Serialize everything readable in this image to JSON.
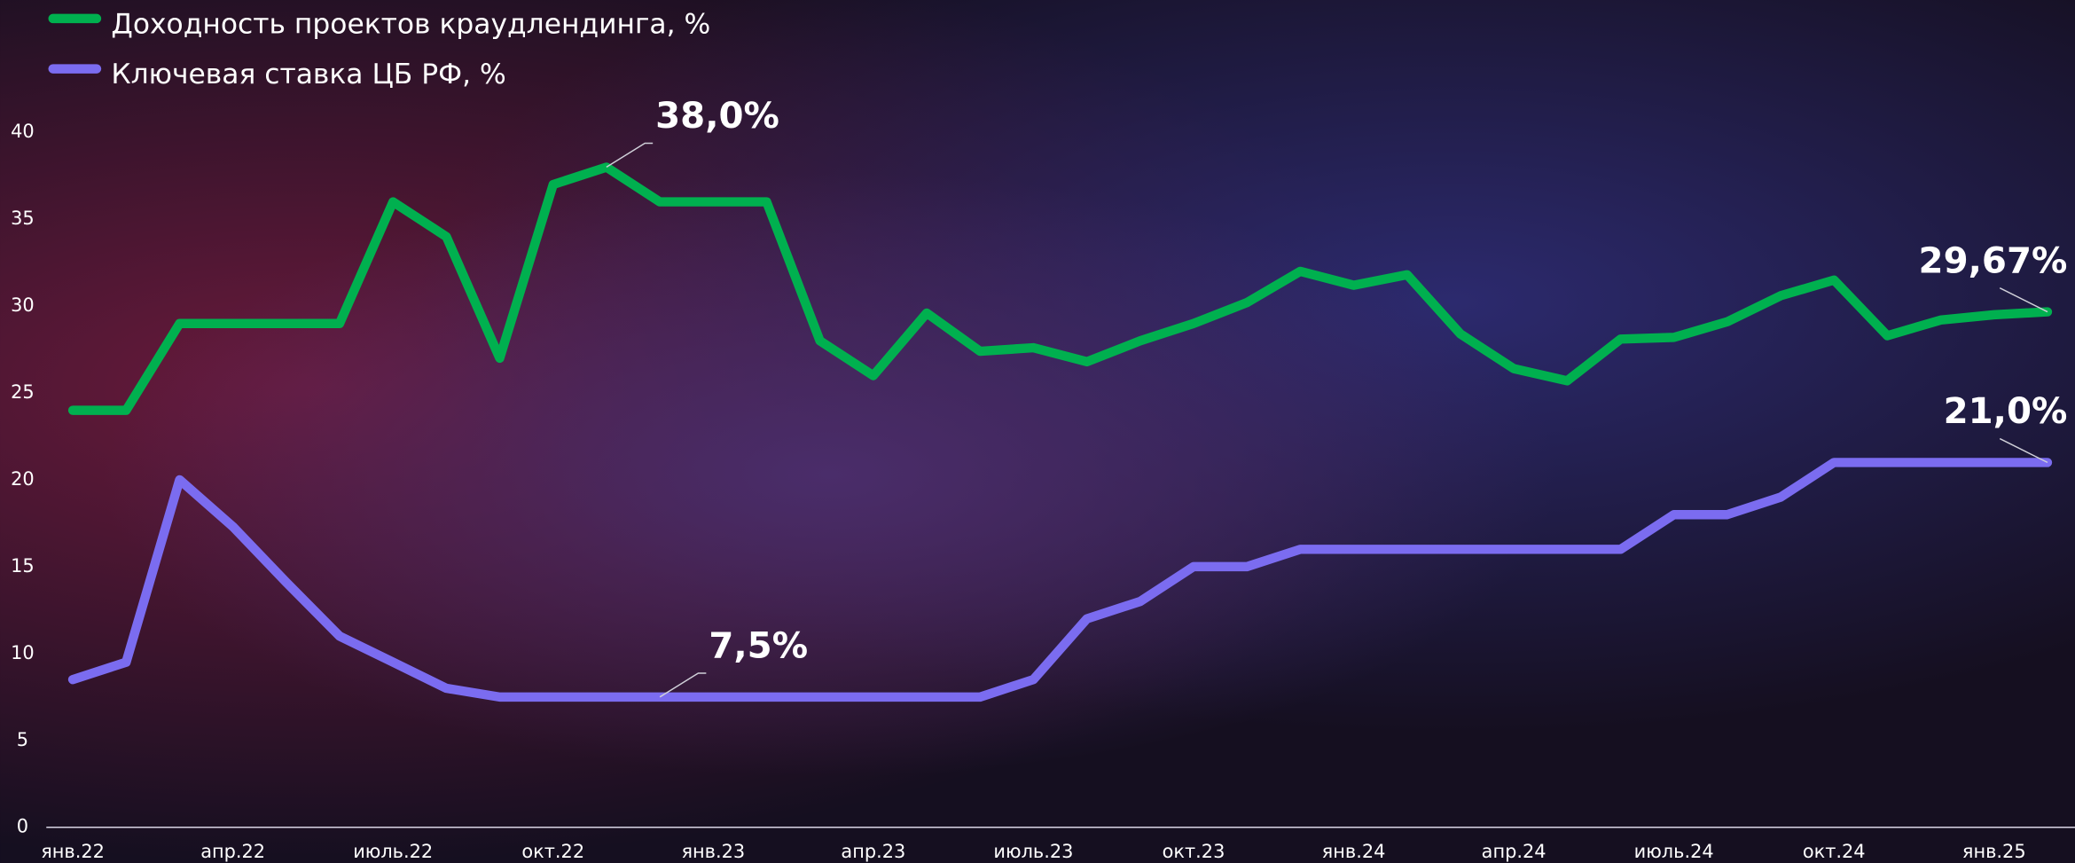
{
  "chart_data": {
    "type": "line",
    "categories": [
      "янв.22",
      null,
      null,
      "апр.22",
      null,
      null,
      "июль.22",
      null,
      null,
      "окт.22",
      null,
      null,
      "янв.23",
      null,
      null,
      "апр.23",
      null,
      null,
      "июль.23",
      null,
      null,
      "окт.23",
      null,
      null,
      "янв.24",
      null,
      null,
      "апр.24",
      null,
      null,
      "июль.24",
      null,
      null,
      "окт.24",
      null,
      null,
      "янв.25",
      null
    ],
    "series": [
      {
        "name": "Доходность проектов  краудлендинга, %",
        "color": "#00b04f",
        "values": [
          24,
          24,
          29,
          29,
          29,
          29,
          36,
          34,
          27,
          37,
          38,
          36,
          36,
          36,
          28,
          26,
          29.6,
          27.4,
          27.6,
          26.8,
          28,
          29,
          30.2,
          32,
          31.2,
          31.8,
          28.4,
          26.4,
          25.7,
          28.1,
          28.2,
          29.1,
          30.6,
          31.5,
          28.3,
          29.2,
          29.5,
          29.67
        ],
        "value_labels": [
          null,
          null,
          null,
          null,
          null,
          null,
          null,
          null,
          null,
          null,
          "38,0%",
          null,
          null,
          null,
          null,
          null,
          null,
          null,
          null,
          null,
          null,
          null,
          null,
          null,
          null,
          null,
          null,
          null,
          null,
          null,
          null,
          null,
          null,
          null,
          null,
          null,
          null,
          "29,67%"
        ]
      },
      {
        "name": "Ключевая ставка ЦБ РФ, %",
        "color": "#7b6cf0",
        "values": [
          8.5,
          9.5,
          20,
          17.3,
          14.1,
          11,
          9.5,
          8,
          7.5,
          7.5,
          7.5,
          7.5,
          7.5,
          7.5,
          7.5,
          7.5,
          7.5,
          7.5,
          8.5,
          12,
          13,
          15,
          15,
          16,
          16,
          16,
          16,
          16,
          16,
          16,
          18,
          18,
          19,
          21,
          21,
          21,
          21,
          21
        ],
        "value_labels": [
          null,
          null,
          null,
          null,
          null,
          null,
          null,
          null,
          null,
          null,
          null,
          "7,5%",
          null,
          null,
          null,
          null,
          null,
          null,
          null,
          null,
          null,
          null,
          null,
          null,
          null,
          null,
          null,
          null,
          null,
          null,
          null,
          null,
          null,
          null,
          null,
          null,
          null,
          "21,0%"
        ]
      }
    ],
    "ylim": [
      0,
      40
    ],
    "yticks": [
      0,
      5,
      10,
      15,
      20,
      25,
      30,
      35,
      40
    ],
    "grid": false
  }
}
